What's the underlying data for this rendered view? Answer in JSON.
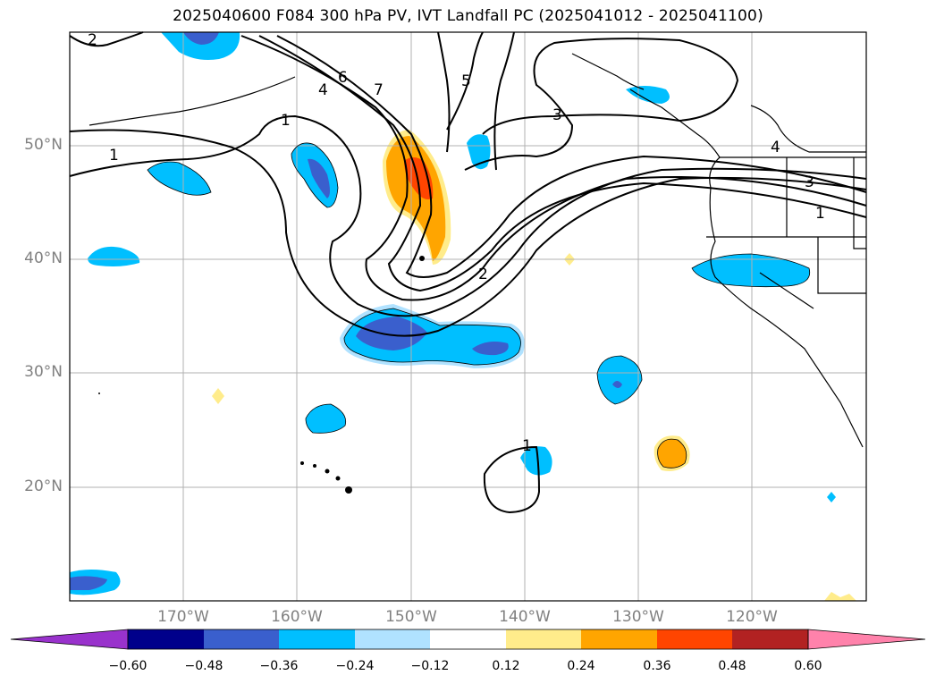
{
  "title": "2025040600 F084 300 hPa PV, IVT Landfall PC (2025041012 - 2025041100)",
  "map": {
    "lat_labels": [
      "50°N",
      "40°N",
      "30°N",
      "20°N"
    ],
    "lon_labels": [
      "170°W",
      "160°W",
      "150°W",
      "140°W",
      "130°W",
      "120°W"
    ],
    "pv_contour_labels": [
      "2",
      "6",
      "4",
      "7",
      "5",
      "1",
      "3",
      "1",
      "4",
      "3",
      "1",
      "2",
      "1"
    ]
  },
  "colorbar": {
    "ticks": [
      "−0.60",
      "−0.48",
      "−0.36",
      "−0.24",
      "−0.12",
      "0.12",
      "0.24",
      "0.36",
      "0.48",
      "0.60"
    ],
    "colors": [
      "#9932cc",
      "#00008b",
      "#3a5fcd",
      "#00bfff",
      "#b0e2ff",
      "#ffffff",
      "#ffec8b",
      "#ffa500",
      "#ff4500",
      "#b22222",
      "#ff82ab"
    ]
  }
}
